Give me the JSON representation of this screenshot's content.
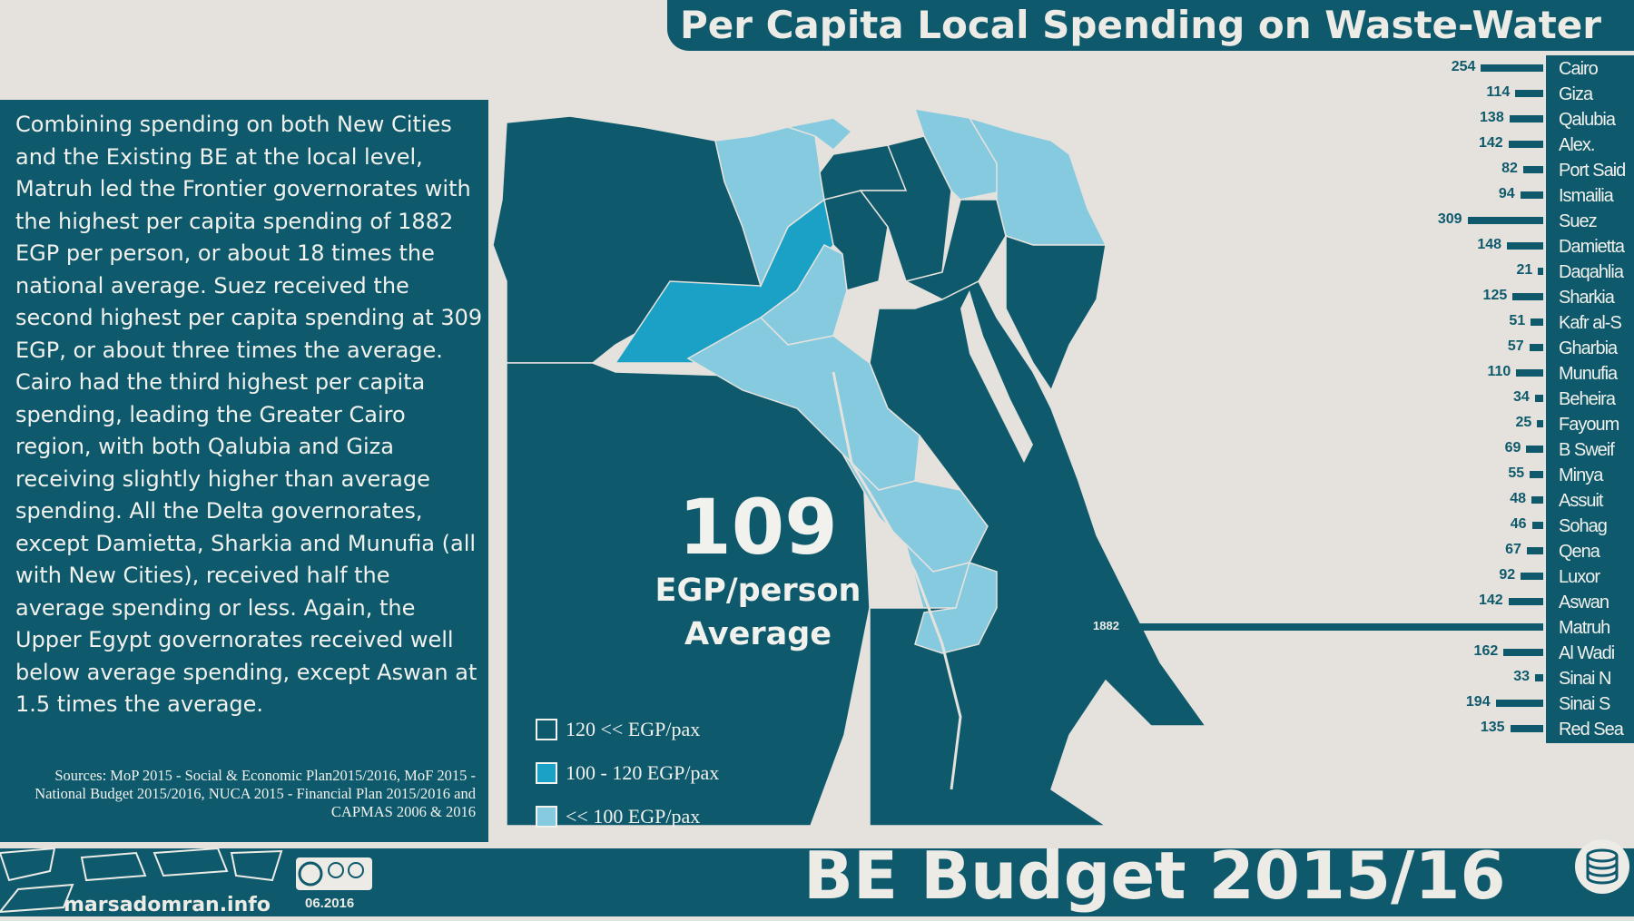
{
  "title": "Per Capita Local Spending on Waste-Water",
  "summary": "Combining spending on both New Cities and the Existing BE at the local level, Matruh led the Frontier governorates with the highest per capita spending of 1882 EGP per person, or about 18 times the national average. Suez received the second highest per capita spending at 309 EGP, or about three times the average. Cairo had the third highest per capita spending, leading the Greater Cairo region, with both Qalubia and Giza receiving slightly higher than average spending. All the Delta governorates, except Damietta, Sharkia and Munufia (all with New Cities), received half the average spending or less. Again, the Upper Egypt governorates received well below average spending, except Aswan at 1.5 times the average.",
  "sources": "Sources: MoP 2015 - Social & Economic Plan2015/2016, MoF 2015 - National Budget 2015/2016, NUCA 2015 - Financial Plan 2015/2016 and CAPMAS 2006 & 2016",
  "average": {
    "value": "109",
    "unit": "EGP/person",
    "label": "Average"
  },
  "legend": [
    {
      "label": "120 << EGP/pax",
      "color": "#0e5a6c"
    },
    {
      "label": "100 - 120 EGP/pax",
      "color": "#1ba1c6"
    },
    {
      "label": "<< 100 EGP/pax",
      "color": "#85cadf"
    }
  ],
  "colors": {
    "dark": "#0e5a6c",
    "mid": "#1ba1c6",
    "light": "#85cadf",
    "background": "#e5e2dd"
  },
  "chart_data": {
    "type": "bar",
    "categories": [
      "Cairo",
      "Giza",
      "Qalubia",
      "Alex.",
      "Port Said",
      "Ismailia",
      "Suez",
      "Damietta",
      "Daqahlia",
      "Sharkia",
      "Kafr al-S",
      "Gharbia",
      "Munufia",
      "Beheira",
      "Fayoum",
      "B Sweif",
      "Minya",
      "Assuit",
      "Sohag",
      "Qena",
      "Luxor",
      "Aswan",
      "Matruh",
      "Al Wadi",
      "Sinai N",
      "Sinai S",
      "Red Sea"
    ],
    "values": [
      254,
      114,
      138,
      142,
      82,
      94,
      309,
      148,
      21,
      125,
      51,
      57,
      110,
      34,
      25,
      69,
      55,
      48,
      46,
      67,
      92,
      142,
      1882,
      162,
      33,
      194,
      135
    ],
    "value_labels": [
      "254",
      "114",
      "138",
      "142",
      "82",
      "94",
      "309",
      "148",
      "21",
      "125",
      "51",
      "57",
      "110",
      "34",
      "25",
      "69",
      "55",
      "48",
      "46",
      "67",
      "92",
      "142",
      "1882",
      "162",
      "33",
      "194",
      "135"
    ],
    "name_labels": [
      "Cairo",
      "Giza",
      "Qalubia",
      "Alex.",
      "Port Said",
      "Ismailia",
      "Suez",
      "Damietta",
      "Daqahlia",
      "Sharkia",
      "Kafr al-S",
      "Gharbia",
      "Munufia",
      "Beheira",
      "Fayoum",
      "B Sweif",
      "Minya",
      "Assuit",
      "Sohag",
      "Qena",
      "Luxor",
      "Aswan",
      "Matruh",
      "Al Wadi",
      "Sinai N",
      "Sinai S",
      "Red Sea"
    ]
  },
  "banner": {
    "budget_title": "BE Budget 2015/16",
    "site": "marsadomran.info",
    "date": "06.2016",
    "license": "CC BY SA"
  }
}
